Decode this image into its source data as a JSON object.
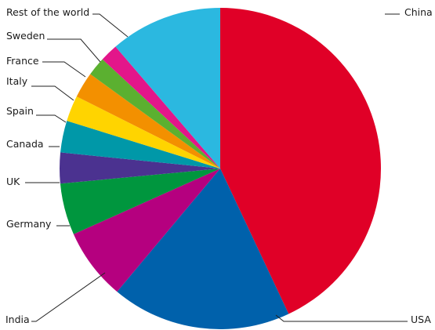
{
  "chart_data": {
    "type": "pie",
    "title": "",
    "start_angle_deg": 0,
    "direction": "clockwise",
    "slices": [
      {
        "label": "China",
        "value": 43.0,
        "color": "#e00027"
      },
      {
        "label": "USA",
        "value": 18.1,
        "color": "#0061ab"
      },
      {
        "label": "India",
        "value": 7.2,
        "color": "#b5007f"
      },
      {
        "label": "Germany",
        "value": 5.2,
        "color": "#00963e"
      },
      {
        "label": "UK",
        "value": 3.1,
        "color": "#4b3290"
      },
      {
        "label": "Canada",
        "value": 3.2,
        "color": "#0098a8"
      },
      {
        "label": "Spain",
        "value": 2.6,
        "color": "#ffd400"
      },
      {
        "label": "Italy",
        "value": 2.6,
        "color": "#f39000"
      },
      {
        "label": "France",
        "value": 1.9,
        "color": "#5bb030"
      },
      {
        "label": "Sweden",
        "value": 1.8,
        "color": "#e3168a"
      },
      {
        "label": "Rest of the world",
        "value": 11.3,
        "color": "#2bb8e0"
      }
    ]
  }
}
